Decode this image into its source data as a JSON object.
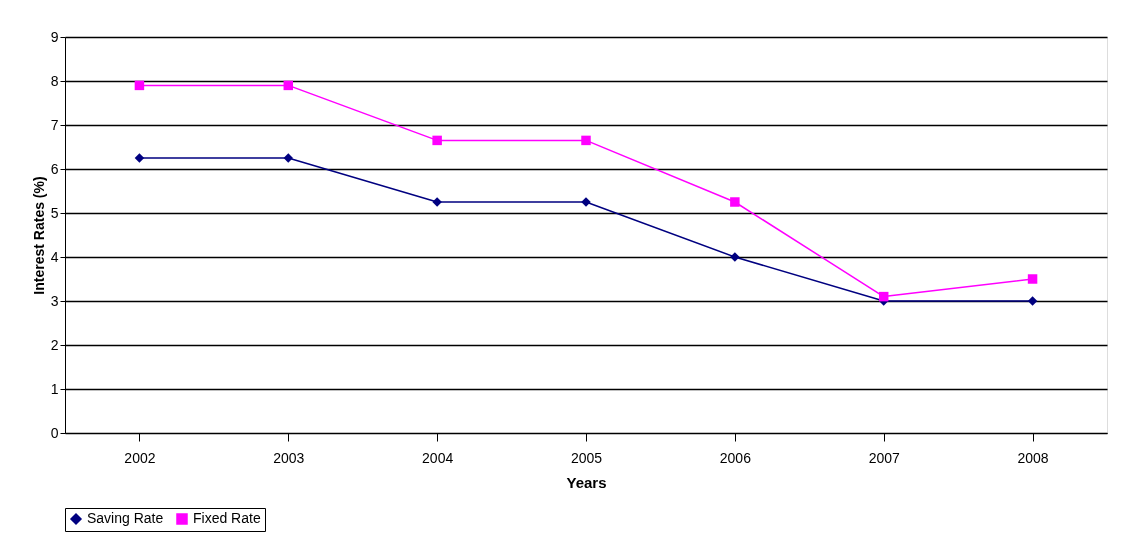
{
  "chart_data": {
    "type": "line",
    "xlabel": "Years",
    "ylabel": "Interest Rates (%)",
    "categories": [
      "2002",
      "2003",
      "2004",
      "2005",
      "2006",
      "2007",
      "2008"
    ],
    "series": [
      {
        "name": "Saving Rate",
        "color": "#000080",
        "marker": "diamond",
        "values": [
          6.25,
          6.25,
          5.25,
          5.25,
          4,
          3,
          3
        ]
      },
      {
        "name": "Fixed Rate",
        "color": "#ff00ff",
        "marker": "square",
        "values": [
          7.9,
          7.9,
          6.65,
          6.65,
          5.25,
          3.1,
          3.5
        ]
      }
    ],
    "ylim": [
      0,
      9
    ],
    "yticks": [
      0,
      1,
      2,
      3,
      4,
      5,
      6,
      7,
      8,
      9
    ],
    "grid": "y",
    "legend": "bottom",
    "line_style": "solid"
  }
}
